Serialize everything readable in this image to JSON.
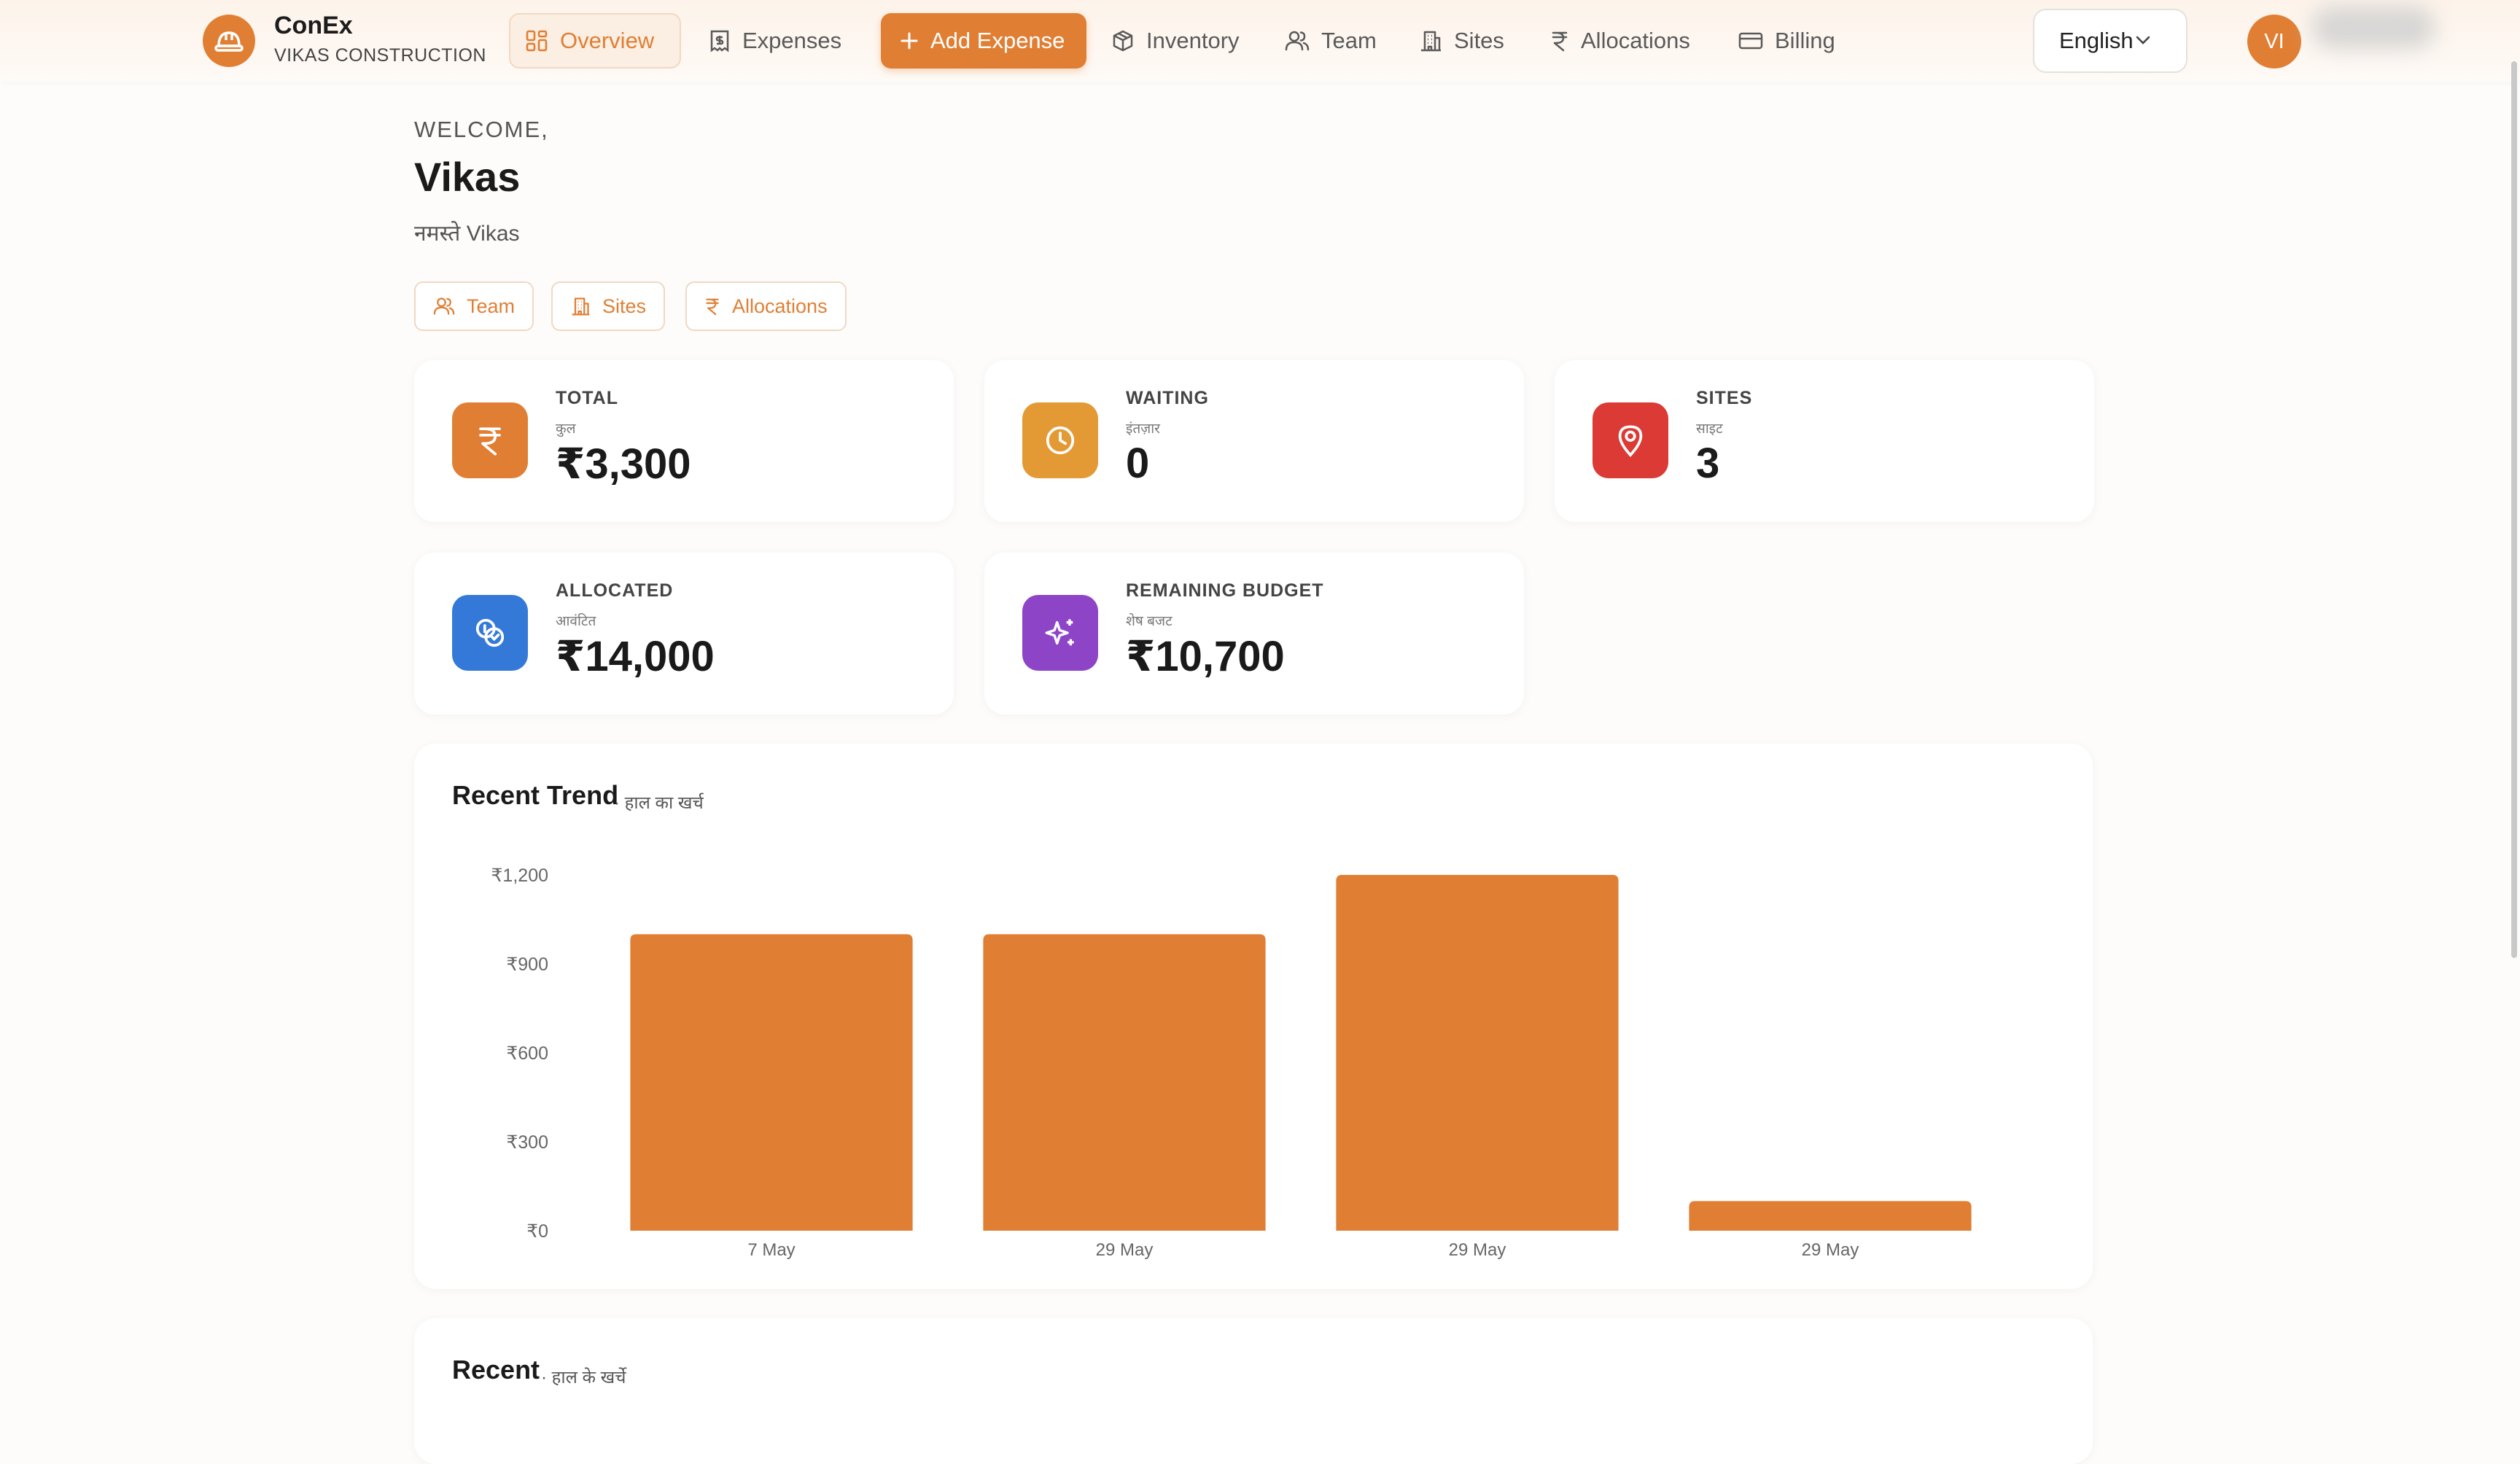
{
  "app": {
    "brand": "ConEx",
    "company": "VIKAS CONSTRUCTION",
    "brand_color": "#e07f34"
  },
  "nav": {
    "items": [
      {
        "label": "Overview",
        "icon": "grid-icon",
        "active": true
      },
      {
        "label": "Expenses",
        "icon": "receipt-icon"
      },
      {
        "label": "Add Expense",
        "icon": "plus-icon",
        "cta": true
      },
      {
        "label": "Inventory",
        "icon": "box-icon"
      },
      {
        "label": "Team",
        "icon": "users-icon"
      },
      {
        "label": "Sites",
        "icon": "building-icon"
      },
      {
        "label": "Allocations",
        "icon": "rupee-icon"
      },
      {
        "label": "Billing",
        "icon": "card-icon"
      }
    ],
    "language": "English",
    "avatar_initials": "VI"
  },
  "welcome": {
    "label": "WELCOME,",
    "name": "Vikas",
    "greeting": "नमस्ते Vikas"
  },
  "quick_links": [
    {
      "label": "Team",
      "icon": "users-icon"
    },
    {
      "label": "Sites",
      "icon": "building-icon"
    },
    {
      "label": "Allocations",
      "icon": "rupee-icon"
    }
  ],
  "stats": [
    {
      "label": "TOTAL",
      "sub": "कुल",
      "value": "₹3,300",
      "icon": "rupee-icon",
      "color": "#e07f34"
    },
    {
      "label": "WAITING",
      "sub": "इंतज़ार",
      "value": "0",
      "icon": "clock-icon",
      "color": "#e39a34"
    },
    {
      "label": "SITES",
      "sub": "साइट",
      "value": "3",
      "icon": "map-pin-icon",
      "color": "#dc3a34"
    },
    {
      "label": "ALLOCATED",
      "sub": "आवंटित",
      "value": "₹14,000",
      "icon": "coins-icon",
      "color": "#3479d8"
    },
    {
      "label": "REMAINING BUDGET",
      "sub": "शेष बजट",
      "value": "₹10,700",
      "icon": "sparkles-icon",
      "color": "#8e44c7"
    }
  ],
  "trend": {
    "title": "Recent Trend",
    "subtitle": "· हाल का खर्च"
  },
  "recent": {
    "title": "Recent",
    "subtitle": "· हाल के खर्चे"
  },
  "chart_data": {
    "type": "bar",
    "title": "Recent Trend",
    "categories": [
      "7 May",
      "29 May",
      "29 May",
      "29 May"
    ],
    "values": [
      1000,
      1000,
      1200,
      100
    ],
    "ylim": [
      0,
      1200
    ],
    "yticks": [
      0,
      300,
      600,
      900,
      1200
    ],
    "ytick_labels": [
      "₹0",
      "₹300",
      "₹600",
      "₹900",
      "₹1,200"
    ],
    "grid": false,
    "bar_color": "#e07f34"
  }
}
